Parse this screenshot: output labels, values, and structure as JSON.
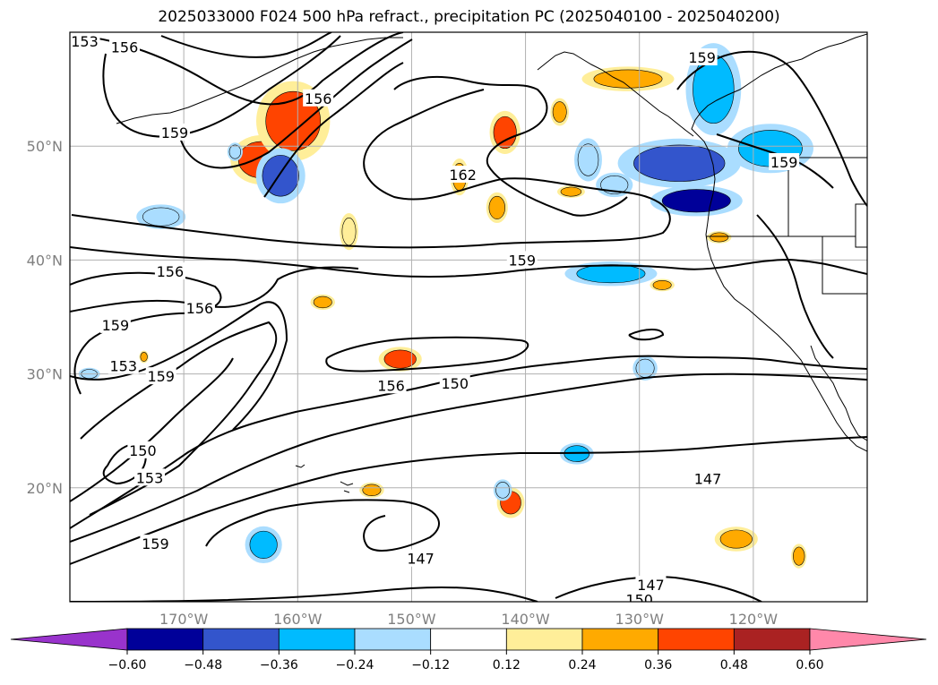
{
  "title": "2025033000 F024 500 hPa refract., precipitation PC (2025040100 - 2025040200)",
  "map": {
    "lon_range": [
      -180,
      -110
    ],
    "lat_range": [
      10,
      60
    ],
    "lat_labels": [
      {
        "lat": 50,
        "text": "50°N"
      },
      {
        "lat": 40,
        "text": "40°N"
      },
      {
        "lat": 30,
        "text": "30°N"
      },
      {
        "lat": 20,
        "text": "20°N"
      }
    ],
    "lon_labels": [
      {
        "lon": -170,
        "text": "170°W"
      },
      {
        "lon": -160,
        "text": "160°W"
      },
      {
        "lon": -150,
        "text": "150°W"
      },
      {
        "lon": -140,
        "text": "140°W"
      },
      {
        "lon": -130,
        "text": "130°W"
      },
      {
        "lon": -120,
        "text": "120°W"
      }
    ],
    "contour_labels": [
      {
        "text": "153",
        "lon": -178.7,
        "lat": 59.2
      },
      {
        "text": "156",
        "lon": -175.2,
        "lat": 58.7
      },
      {
        "text": "159",
        "lon": -170.8,
        "lat": 51.2
      },
      {
        "text": "156",
        "lon": -158.2,
        "lat": 54.2
      },
      {
        "text": "162",
        "lon": -145.5,
        "lat": 47.5
      },
      {
        "text": "159",
        "lon": -124.5,
        "lat": 57.8
      },
      {
        "text": "159",
        "lon": -117.3,
        "lat": 48.6
      },
      {
        "text": "156",
        "lon": -171.2,
        "lat": 39.0
      },
      {
        "text": "159",
        "lon": -140.3,
        "lat": 40.0
      },
      {
        "text": "156",
        "lon": -168.6,
        "lat": 35.8
      },
      {
        "text": "159",
        "lon": -176.0,
        "lat": 34.3
      },
      {
        "text": "153",
        "lon": -175.3,
        "lat": 30.7
      },
      {
        "text": "159",
        "lon": -172.0,
        "lat": 29.8
      },
      {
        "text": "156",
        "lon": -151.8,
        "lat": 29.0
      },
      {
        "text": "150",
        "lon": -146.2,
        "lat": 29.2
      },
      {
        "text": "150",
        "lon": -173.6,
        "lat": 23.3
      },
      {
        "text": "153",
        "lon": -173.0,
        "lat": 20.9
      },
      {
        "text": "147",
        "lon": -124.0,
        "lat": 20.8
      },
      {
        "text": "159",
        "lon": -172.5,
        "lat": 15.1
      },
      {
        "text": "147",
        "lon": -149.2,
        "lat": 13.8
      },
      {
        "text": "147",
        "lon": -129.0,
        "lat": 11.5
      },
      {
        "text": "150",
        "lon": -130.0,
        "lat": 10.2
      }
    ],
    "precip_blobs": [
      {
        "lon": -163.2,
        "lat": 48.8,
        "rx": 2.0,
        "ry": 1.6,
        "value": 0.4
      },
      {
        "lon": -160.4,
        "lat": 52.2,
        "rx": 2.4,
        "ry": 2.6,
        "value": 0.4
      },
      {
        "lon": -161.5,
        "lat": 47.4,
        "rx": 1.6,
        "ry": 1.8,
        "value": -0.4
      },
      {
        "lon": -141.8,
        "lat": 51.2,
        "rx": 1.0,
        "ry": 1.4,
        "value": 0.4
      },
      {
        "lon": -145.8,
        "lat": 47.3,
        "rx": 0.6,
        "ry": 1.2,
        "value": 0.24
      },
      {
        "lon": -142.5,
        "lat": 44.6,
        "rx": 0.7,
        "ry": 1.0,
        "value": 0.24
      },
      {
        "lon": -131.0,
        "lat": 55.9,
        "rx": 3.0,
        "ry": 0.8,
        "value": 0.3
      },
      {
        "lon": -125.0,
        "lat": 45.2,
        "rx": 3.0,
        "ry": 1.0,
        "value": -0.55
      },
      {
        "lon": -126.5,
        "lat": 48.5,
        "rx": 4.0,
        "ry": 1.6,
        "value": -0.4
      },
      {
        "lon": -123.5,
        "lat": 55.0,
        "rx": 1.8,
        "ry": 3.0,
        "value": -0.3
      },
      {
        "lon": -118.5,
        "lat": 49.8,
        "rx": 2.8,
        "ry": 1.6,
        "value": -0.3
      },
      {
        "lon": -134.5,
        "lat": 48.8,
        "rx": 0.9,
        "ry": 1.4,
        "value": -0.24
      },
      {
        "lon": -132.2,
        "lat": 46.6,
        "rx": 1.2,
        "ry": 0.8,
        "value": -0.24
      },
      {
        "lon": -132.5,
        "lat": 38.8,
        "rx": 3.0,
        "ry": 0.8,
        "value": -0.3
      },
      {
        "lon": -151.0,
        "lat": 31.3,
        "rx": 1.4,
        "ry": 0.8,
        "value": 0.4
      },
      {
        "lon": -141.3,
        "lat": 18.7,
        "rx": 0.9,
        "ry": 1.0,
        "value": 0.36
      },
      {
        "lon": -135.5,
        "lat": 23.0,
        "rx": 1.1,
        "ry": 0.7,
        "value": -0.3
      },
      {
        "lon": -163.0,
        "lat": 15.0,
        "rx": 1.2,
        "ry": 1.2,
        "value": -0.3
      },
      {
        "lon": -121.5,
        "lat": 15.5,
        "rx": 1.4,
        "ry": 0.8,
        "value": 0.3
      },
      {
        "lon": -116.0,
        "lat": 14.0,
        "rx": 0.5,
        "ry": 0.8,
        "value": 0.3
      },
      {
        "lon": -173.5,
        "lat": 31.5,
        "rx": 0.3,
        "ry": 0.4,
        "value": 0.3
      },
      {
        "lon": -153.5,
        "lat": 19.8,
        "rx": 0.8,
        "ry": 0.5,
        "value": 0.3
      },
      {
        "lon": -128.0,
        "lat": 37.8,
        "rx": 0.8,
        "ry": 0.4,
        "value": 0.3
      },
      {
        "lon": -123.0,
        "lat": 42.0,
        "rx": 0.8,
        "ry": 0.4,
        "value": 0.3
      },
      {
        "lon": -172.0,
        "lat": 43.8,
        "rx": 1.6,
        "ry": 0.8,
        "value": -0.2
      },
      {
        "lon": -178.3,
        "lat": 30.0,
        "rx": 0.7,
        "ry": 0.4,
        "value": -0.24
      },
      {
        "lon": -165.5,
        "lat": 49.5,
        "rx": 0.5,
        "ry": 0.6,
        "value": -0.2
      },
      {
        "lon": -157.8,
        "lat": 36.3,
        "rx": 0.8,
        "ry": 0.5,
        "value": 0.24
      },
      {
        "lon": -155.5,
        "lat": 42.5,
        "rx": 0.6,
        "ry": 1.2,
        "value": 0.2
      },
      {
        "lon": -137.0,
        "lat": 53.0,
        "rx": 0.6,
        "ry": 0.9,
        "value": 0.3
      },
      {
        "lon": -129.5,
        "lat": 30.5,
        "rx": 0.8,
        "ry": 0.8,
        "value": -0.24
      },
      {
        "lon": -136.0,
        "lat": 46.0,
        "rx": 0.9,
        "ry": 0.4,
        "value": 0.24
      },
      {
        "lon": -142.0,
        "lat": 19.8,
        "rx": 0.6,
        "ry": 0.7,
        "value": -0.24
      }
    ]
  },
  "colorbar": {
    "colors": [
      "#9933cc",
      "#000099",
      "#3355cc",
      "#00bbff",
      "#aaddff",
      "#ffffff",
      "#ffee99",
      "#ffaa00",
      "#ff4400",
      "#aa2222",
      "#ff88aa"
    ],
    "tick_labels": [
      "−0.60",
      "−0.48",
      "−0.36",
      "−0.24",
      "−0.12",
      "0.12",
      "0.24",
      "0.36",
      "0.48",
      "0.60"
    ]
  }
}
